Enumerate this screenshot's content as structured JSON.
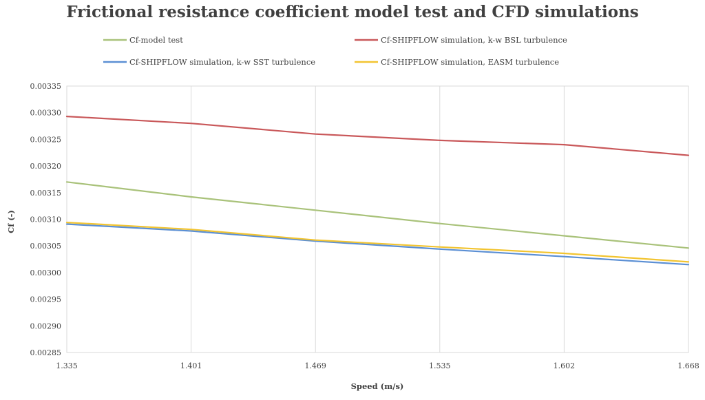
{
  "chart_data": {
    "type": "line",
    "title": "Frictional resistance coefficient  model test  and CFD simulations",
    "xlabel": "Speed (m/s)",
    "ylabel": "Cf (-)",
    "x": [
      "1.335",
      "1.401",
      "1.469",
      "1.535",
      "1.602",
      "1.668"
    ],
    "ylim": [
      0.00285,
      0.00335
    ],
    "yticks": [
      "0.00285",
      "0.00290",
      "0.00295",
      "0.00300",
      "0.00305",
      "0.00310",
      "0.00315",
      "0.00320",
      "0.00325",
      "0.00330",
      "0.00335"
    ],
    "grid": "vertical",
    "legend_position": "top",
    "series": [
      {
        "name": "Cf-model test",
        "color": "#a9c27a",
        "values": [
          0.00317,
          0.003142,
          0.003117,
          0.003092,
          0.003069,
          0.003046
        ]
      },
      {
        "name": "Cf-SHIPFLOW simulation, k-w BSL turbulence",
        "color": "#c9585a",
        "values": [
          0.003293,
          0.00328,
          0.00326,
          0.003248,
          0.00324,
          0.00322
        ]
      },
      {
        "name": "Cf-SHIPFLOW simulation, k-w SST turbulence",
        "color": "#5b8fd4",
        "values": [
          0.003091,
          0.003078,
          0.003059,
          0.003044,
          0.00303,
          0.003015
        ]
      },
      {
        "name": "Cf-SHIPFLOW simulation, EASM turbulence",
        "color": "#f2c430",
        "values": [
          0.003094,
          0.003081,
          0.003061,
          0.003048,
          0.003036,
          0.00302
        ]
      }
    ]
  }
}
